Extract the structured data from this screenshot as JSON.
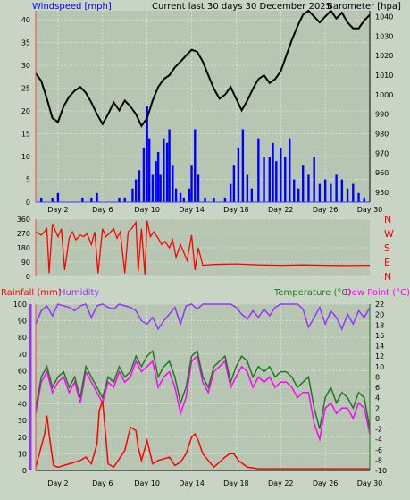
{
  "colors": {
    "background": "#c8d4c4",
    "plot_bg": "#b6c6b2",
    "wind": "#0000ff",
    "baro": "#000000",
    "dir": "#ff0000",
    "rain": "#ff0000",
    "humidity": "#9932ff",
    "temperature": "#1e7a1e",
    "dewpoint": "#ff00ff",
    "grid": "#e8f0e0"
  },
  "chart_data": [
    {
      "type": "line",
      "id": "wind_baro",
      "title": "Current last 30 days 30 December 2025",
      "left_axis_label": "Windspeed [mph]",
      "right_axis_label": "Barometer [hpa]",
      "x_tick_labels": [
        "Day 2",
        "Day 6",
        "Day 10",
        "Day 14",
        "Day 18",
        "Day 22",
        "Day 26",
        "Day 30"
      ],
      "x_tick_days": [
        2,
        6,
        10,
        14,
        18,
        22,
        26,
        30
      ],
      "xlim": [
        0,
        30
      ],
      "left_ylim": [
        0,
        42
      ],
      "left_ticks": [
        0,
        5,
        10,
        15,
        20,
        25,
        30,
        35,
        40
      ],
      "right_ylim": [
        945,
        1043
      ],
      "right_ticks": [
        950,
        960,
        970,
        980,
        990,
        1000,
        1010,
        1020,
        1030,
        1040
      ],
      "series": [
        {
          "name": "Windspeed",
          "axis": "left",
          "style": "bars",
          "x": [
            0.5,
            1.5,
            2.0,
            4.2,
            5.0,
            5.5,
            7.5,
            8.0,
            8.7,
            9.0,
            9.3,
            9.7,
            10.0,
            10.2,
            10.5,
            10.8,
            11.0,
            11.2,
            11.5,
            11.8,
            12.0,
            12.3,
            12.6,
            13.0,
            13.3,
            13.8,
            14.0,
            14.3,
            14.6,
            15.2,
            16.0,
            17.0,
            17.5,
            17.8,
            18.2,
            18.6,
            19.0,
            19.4,
            20.0,
            20.5,
            21.0,
            21.3,
            21.6,
            22.0,
            22.4,
            22.8,
            23.2,
            23.6,
            24.0,
            24.5,
            25.0,
            25.5,
            26.0,
            26.5,
            27.0,
            27.5,
            28.0,
            28.5,
            29.0,
            29.5
          ],
          "y": [
            1,
            1,
            2,
            1,
            1,
            2,
            1,
            1,
            3,
            5,
            7,
            12,
            21,
            14,
            6,
            9,
            11,
            6,
            14,
            13,
            16,
            8,
            3,
            2,
            1,
            3,
            8,
            16,
            6,
            1,
            1,
            1,
            4,
            8,
            12,
            16,
            6,
            3,
            14,
            10,
            10,
            13,
            9,
            12,
            10,
            14,
            5,
            3,
            8,
            6,
            10,
            4,
            5,
            4,
            6,
            5,
            3,
            4,
            2,
            1
          ]
        },
        {
          "name": "Barometer",
          "axis": "right",
          "style": "line",
          "x": [
            0,
            0.5,
            1.0,
            1.5,
            2.0,
            2.5,
            3.0,
            3.5,
            4.0,
            4.5,
            5.0,
            5.5,
            6.0,
            6.5,
            7.0,
            7.5,
            8.0,
            8.5,
            9.0,
            9.5,
            10.0,
            10.5,
            11.0,
            11.5,
            12.0,
            12.5,
            13.0,
            13.5,
            14.0,
            14.5,
            15.0,
            15.5,
            16.0,
            16.5,
            17.0,
            17.5,
            18.0,
            18.5,
            19.0,
            19.5,
            20.0,
            20.5,
            21.0,
            21.5,
            22.0,
            22.5,
            23.0,
            23.5,
            24.0,
            24.5,
            25.0,
            25.5,
            26.0,
            26.5,
            27.0,
            27.5,
            28.0,
            28.5,
            29.0,
            29.5,
            30.0
          ],
          "y": [
            1011,
            1007,
            998,
            988,
            986,
            994,
            999,
            1002,
            1004,
            1001,
            996,
            990,
            985,
            990,
            996,
            992,
            997,
            994,
            990,
            984,
            988,
            997,
            1004,
            1008,
            1010,
            1014,
            1017,
            1020,
            1023,
            1022,
            1017,
            1010,
            1003,
            998,
            1000,
            1004,
            998,
            992,
            997,
            1003,
            1008,
            1010,
            1006,
            1008,
            1012,
            1020,
            1028,
            1035,
            1041,
            1043,
            1040,
            1037,
            1040,
            1043,
            1039,
            1042,
            1037,
            1034,
            1034,
            1038,
            1041
          ]
        }
      ]
    },
    {
      "type": "line",
      "id": "wind_direction",
      "y_tick_labels": [
        "360",
        "270",
        "180",
        "90",
        "0"
      ],
      "ylim": [
        0,
        360
      ],
      "compass_labels": [
        "N",
        "W",
        "S",
        "E",
        "N"
      ],
      "series": [
        {
          "name": "Wind direction",
          "x": [
            0,
            0.5,
            1.0,
            1.2,
            1.5,
            2.0,
            2.3,
            2.6,
            3.0,
            3.3,
            3.6,
            4.0,
            4.3,
            4.6,
            5.0,
            5.3,
            5.6,
            6.0,
            6.3,
            6.6,
            7.0,
            7.3,
            7.6,
            8.0,
            8.3,
            8.6,
            9.0,
            9.2,
            9.5,
            9.8,
            10.0,
            10.3,
            10.6,
            11.0,
            11.3,
            11.6,
            12.0,
            12.3,
            12.6,
            13.0,
            13.3,
            13.6,
            14.0,
            14.3,
            14.6,
            15.0,
            16.0,
            18.0,
            20.0,
            22.0,
            24.0,
            26.0,
            28.0,
            30.0
          ],
          "y": [
            280,
            260,
            300,
            20,
            330,
            250,
            300,
            40,
            240,
            280,
            230,
            260,
            250,
            270,
            200,
            280,
            20,
            300,
            250,
            270,
            300,
            240,
            280,
            20,
            280,
            300,
            340,
            30,
            300,
            10,
            350,
            250,
            280,
            240,
            200,
            220,
            180,
            230,
            120,
            200,
            150,
            100,
            260,
            40,
            180,
            70,
            75,
            78,
            72,
            70,
            72,
            70,
            68,
            70
          ]
        }
      ]
    },
    {
      "type": "line",
      "id": "rain_hum_temp",
      "left_axis_labels": [
        "Rainfall (mm)",
        "Humidity"
      ],
      "right_axis_labels": [
        "Temperature (°C)",
        "Dew Point (°C)"
      ],
      "left_ylim": [
        0,
        100
      ],
      "left_ticks": [
        0,
        10,
        20,
        30,
        40,
        50,
        60,
        70,
        80,
        90,
        100
      ],
      "right_ylim": [
        -10,
        22
      ],
      "right_ticks": [
        -10,
        -8,
        -6,
        -4,
        -2,
        0,
        2,
        4,
        6,
        8,
        10,
        12,
        14,
        16,
        18,
        20,
        22
      ],
      "series": [
        {
          "name": "Humidity",
          "axis": "left",
          "x": [
            0,
            0.5,
            1.0,
            1.5,
            2.0,
            2.5,
            3.0,
            3.5,
            4.0,
            4.5,
            5.0,
            5.5,
            6.0,
            6.5,
            7.0,
            7.5,
            8.0,
            8.5,
            9.0,
            9.5,
            10.0,
            10.5,
            11.0,
            11.5,
            12.0,
            12.5,
            13.0,
            13.5,
            14.0,
            14.5,
            15.0,
            15.5,
            16.0,
            16.5,
            17.0,
            17.5,
            18.0,
            18.5,
            19.0,
            19.5,
            20.0,
            20.5,
            21.0,
            21.5,
            22.0,
            22.5,
            23.0,
            23.5,
            24.0,
            24.5,
            25.0,
            25.5,
            26.0,
            26.5,
            27.0,
            27.5,
            28.0,
            28.5,
            29.0,
            29.5,
            30.0
          ],
          "y": [
            88,
            96,
            99,
            93,
            100,
            99,
            98,
            96,
            99,
            100,
            92,
            99,
            100,
            98,
            97,
            100,
            99,
            98,
            96,
            90,
            88,
            92,
            85,
            90,
            94,
            98,
            88,
            99,
            100,
            97,
            100,
            100,
            100,
            100,
            100,
            100,
            98,
            94,
            91,
            96,
            92,
            97,
            93,
            98,
            100,
            100,
            100,
            100,
            97,
            86,
            92,
            98,
            88,
            96,
            92,
            85,
            94,
            88,
            96,
            92,
            98
          ]
        },
        {
          "name": "Rainfall",
          "axis": "left",
          "x": [
            0,
            0.8,
            1.0,
            1.2,
            1.4,
            1.6,
            2.0,
            3.0,
            4.0,
            4.5,
            5.0,
            5.5,
            5.7,
            6.0,
            6.3,
            6.5,
            7.0,
            8.0,
            8.5,
            9.0,
            9.2,
            9.5,
            10.0,
            10.5,
            11.0,
            12.0,
            12.5,
            13.0,
            13.5,
            14.0,
            14.3,
            14.6,
            15.0,
            16.0,
            17.0,
            17.4,
            17.8,
            18.2,
            18.6,
            19.0,
            20.0,
            22.0,
            24.0,
            25.0,
            26.0,
            27.0,
            28.0,
            29.0,
            30.0
          ],
          "y": [
            2,
            22,
            33,
            22,
            12,
            3,
            2,
            4,
            6,
            8,
            4,
            16,
            36,
            42,
            20,
            4,
            2,
            12,
            26,
            24,
            14,
            6,
            18,
            4,
            6,
            8,
            3,
            5,
            10,
            20,
            22,
            18,
            10,
            2,
            8,
            10,
            10,
            6,
            4,
            2,
            1,
            1,
            1,
            1,
            1,
            1,
            1,
            1,
            1
          ]
        },
        {
          "name": "Temperature",
          "axis": "right",
          "x": [
            0,
            0.5,
            1.0,
            1.5,
            2.0,
            2.5,
            3.0,
            3.5,
            4.0,
            4.5,
            5.0,
            5.5,
            6.0,
            6.5,
            7.0,
            7.5,
            8.0,
            8.5,
            9.0,
            9.5,
            10.0,
            10.5,
            11.0,
            11.5,
            12.0,
            12.5,
            13.0,
            13.5,
            14.0,
            14.5,
            15.0,
            15.5,
            16.0,
            16.5,
            17.0,
            17.5,
            18.0,
            18.5,
            19.0,
            19.5,
            20.0,
            20.5,
            21.0,
            21.5,
            22.0,
            22.5,
            23.0,
            23.5,
            24.0,
            24.5,
            25.0,
            25.5,
            26.0,
            26.5,
            27.0,
            27.5,
            28.0,
            28.5,
            29.0,
            29.5,
            30.0
          ],
          "y": [
            2,
            8,
            10,
            6,
            8,
            9,
            6,
            8,
            4,
            10,
            8,
            6,
            4,
            8,
            7,
            10,
            8,
            9,
            12,
            10,
            12,
            13,
            8,
            10,
            11,
            8,
            3,
            6,
            12,
            13,
            8,
            6,
            10,
            11,
            12,
            7,
            10,
            12,
            11,
            8,
            10,
            9,
            10,
            8,
            9,
            9,
            8,
            6,
            7,
            8,
            2,
            -2,
            4,
            6,
            3,
            5,
            4,
            2,
            5,
            4,
            -2
          ]
        },
        {
          "name": "Dew Point",
          "axis": "right",
          "x": [
            0,
            0.5,
            1.0,
            1.5,
            2.0,
            2.5,
            3.0,
            3.5,
            4.0,
            4.5,
            5.0,
            5.5,
            6.0,
            6.5,
            7.0,
            7.5,
            8.0,
            8.5,
            9.0,
            9.5,
            10.0,
            10.5,
            11.0,
            11.5,
            12.0,
            12.5,
            13.0,
            13.5,
            14.0,
            14.5,
            15.0,
            15.5,
            16.0,
            16.5,
            17.0,
            17.5,
            18.0,
            18.5,
            19.0,
            19.5,
            20.0,
            20.5,
            21.0,
            21.5,
            22.0,
            22.5,
            23.0,
            23.5,
            24.0,
            24.5,
            25.0,
            25.5,
            26.0,
            26.5,
            27.0,
            27.5,
            28.0,
            28.5,
            29.0,
            29.5,
            30.0
          ],
          "y": [
            1,
            7,
            9,
            5,
            7,
            8,
            5,
            7,
            3,
            9,
            7,
            5,
            3,
            7,
            6,
            9,
            7,
            8,
            11,
            9,
            10,
            11,
            6,
            8,
            9,
            6,
            1,
            4,
            11,
            12,
            7,
            5,
            9,
            10,
            11,
            6,
            8,
            10,
            9,
            6,
            8,
            7,
            8,
            6,
            7,
            7,
            6,
            4,
            5,
            5,
            -1,
            -4,
            2,
            3,
            1,
            2,
            2,
            0,
            3,
            2,
            -3
          ]
        }
      ]
    }
  ]
}
